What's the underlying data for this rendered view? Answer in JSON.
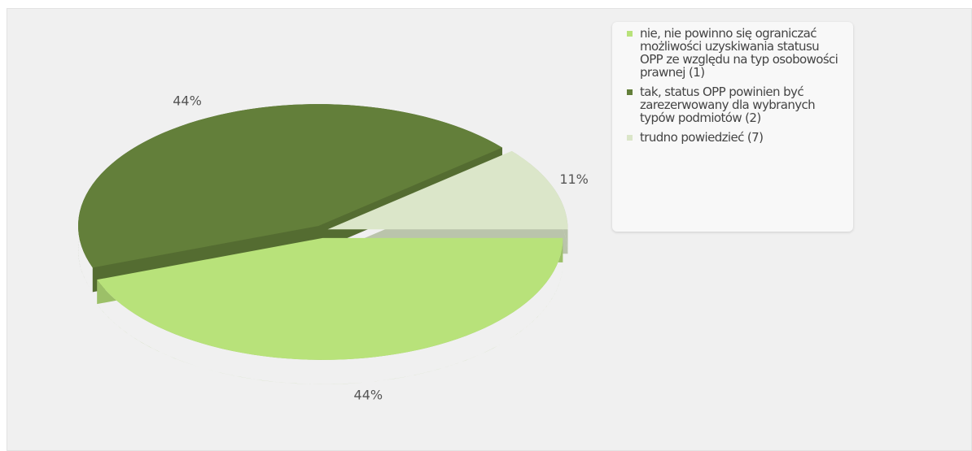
{
  "chart_data": {
    "type": "pie",
    "categories": [
      "nie, nie powinno się ograniczać możliwości uzyskiwania statusu OPP ze względu na typ osobowości prawnej (1)",
      "tak, status OPP powinien być zarezerwowany dla wybranych typów podmiotów (2)",
      "trudno powiedzieć (7)"
    ],
    "values": [
      44,
      44,
      11
    ],
    "value_labels": [
      "44%",
      "44%",
      "11%"
    ],
    "colors": [
      "#b8e27a",
      "#637f3a",
      "#dbe6c9"
    ]
  }
}
